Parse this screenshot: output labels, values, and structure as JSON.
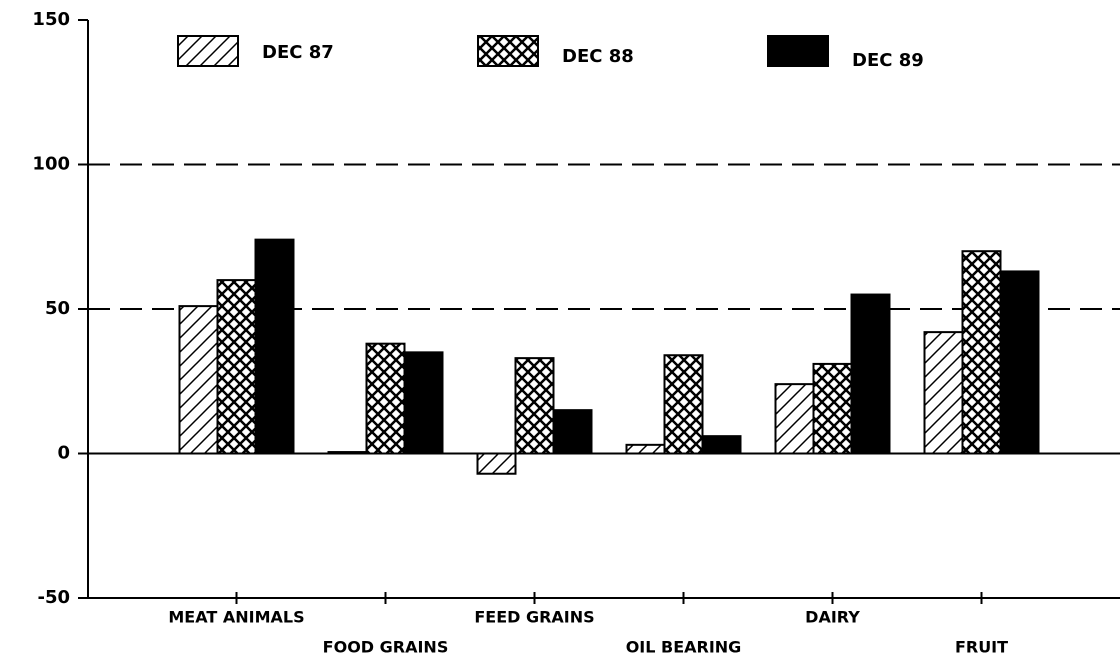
{
  "chart_data": {
    "type": "bar",
    "categories": [
      "MEAT ANIMALS",
      "FOOD GRAINS",
      "FEED GRAINS",
      "OIL BEARING",
      "DAIRY",
      "FRUIT"
    ],
    "series": [
      {
        "name": "DEC 87",
        "color": "#000000",
        "pattern": "hatch",
        "values": [
          51,
          0.5,
          -7,
          3,
          24,
          42
        ]
      },
      {
        "name": "DEC 88",
        "color": "#000000",
        "pattern": "crosshatch",
        "values": [
          60,
          38,
          33,
          34,
          31,
          70
        ]
      },
      {
        "name": "DEC 89",
        "color": "#000000",
        "pattern": "solid",
        "values": [
          74,
          35,
          15,
          6,
          55,
          63
        ]
      }
    ],
    "ylim": [
      -50,
      150
    ],
    "yticks": [
      -50,
      0,
      50,
      100,
      150
    ],
    "grid": true,
    "legend": "top"
  }
}
